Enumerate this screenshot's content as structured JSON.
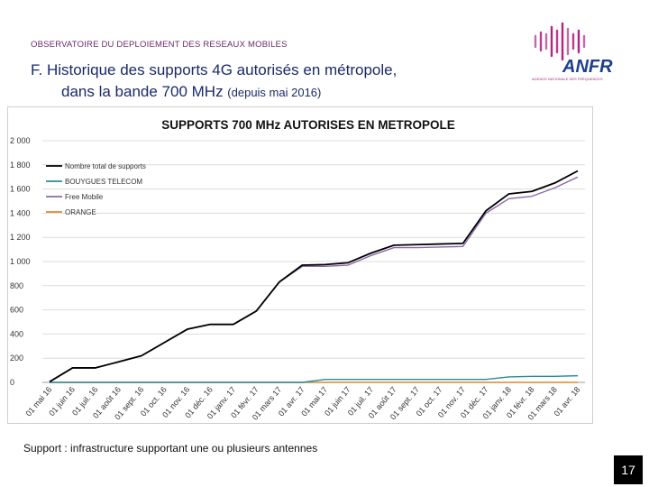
{
  "header": {
    "observatory": "OBSERVATOIRE DU DEPLOIEMENT DES RESEAUX MOBILES",
    "title_line1": "F. Historique des supports 4G autorisés en métropole,",
    "title_line2": "dans la bande 700 MHz",
    "title_sub": "(depuis mai 2016)"
  },
  "logo": {
    "text": "ANFR",
    "tagline": "AGENCE NATIONALE DES FRÉQUENCES",
    "color": "#1d3f8f",
    "accent": "#b0257d"
  },
  "footer": {
    "note": "Support : infrastructure supportant une ou plusieurs antennes",
    "page": "17"
  },
  "chart_data": {
    "type": "line",
    "title": "SUPPORTS 700 MHz AUTORISES EN METROPOLE",
    "xlabel": "",
    "ylabel": "",
    "ylim": [
      0,
      2000
    ],
    "yticks": [
      "0",
      "200",
      "400",
      "600",
      "800",
      "1 000",
      "1 200",
      "1 400",
      "1 600",
      "1 800",
      "2 000"
    ],
    "categories": [
      "01 mai 16",
      "01 juin 16",
      "01 juil. 16",
      "01 août 16",
      "01 sept. 16",
      "01 oct. 16",
      "01 nov. 16",
      "01 déc. 16",
      "01 janv. 17",
      "01 févr. 17",
      "01 mars 17",
      "01 avr. 17",
      "01 mai 17",
      "01 juin 17",
      "01 juil. 17",
      "01 août 17",
      "01 sept. 17",
      "01 oct. 17",
      "01 nov. 17",
      "01 déc. 17",
      "01 janv. 18",
      "01 févr. 18",
      "01 mars 18",
      "01 avr. 18"
    ],
    "legend_position": "top-left",
    "grid": true,
    "series": [
      {
        "name": "Nombre total de supports",
        "color": "#000000",
        "values": [
          5,
          120,
          120,
          170,
          220,
          330,
          440,
          480,
          480,
          590,
          830,
          970,
          975,
          990,
          1070,
          1135,
          1140,
          1145,
          1150,
          1420,
          1560,
          1580,
          1650,
          1750
        ]
      },
      {
        "name": "BOUYGUES TELECOM",
        "color": "#2a8a9a",
        "values": [
          0,
          0,
          0,
          0,
          0,
          0,
          0,
          0,
          0,
          0,
          0,
          0,
          25,
          25,
          25,
          25,
          25,
          25,
          25,
          25,
          45,
          50,
          50,
          55
        ]
      },
      {
        "name": "Free Mobile",
        "color": "#8a6aaa",
        "values": [
          5,
          120,
          120,
          170,
          220,
          330,
          440,
          480,
          480,
          590,
          830,
          960,
          960,
          970,
          1050,
          1115,
          1115,
          1120,
          1125,
          1400,
          1520,
          1540,
          1610,
          1700
        ]
      },
      {
        "name": "ORANGE",
        "color": "#d88a2a",
        "values": [
          0,
          0,
          0,
          0,
          0,
          0,
          0,
          0,
          0,
          0,
          0,
          0,
          0,
          0,
          0,
          0,
          0,
          0,
          0,
          0,
          0,
          0,
          0,
          0
        ]
      }
    ]
  }
}
